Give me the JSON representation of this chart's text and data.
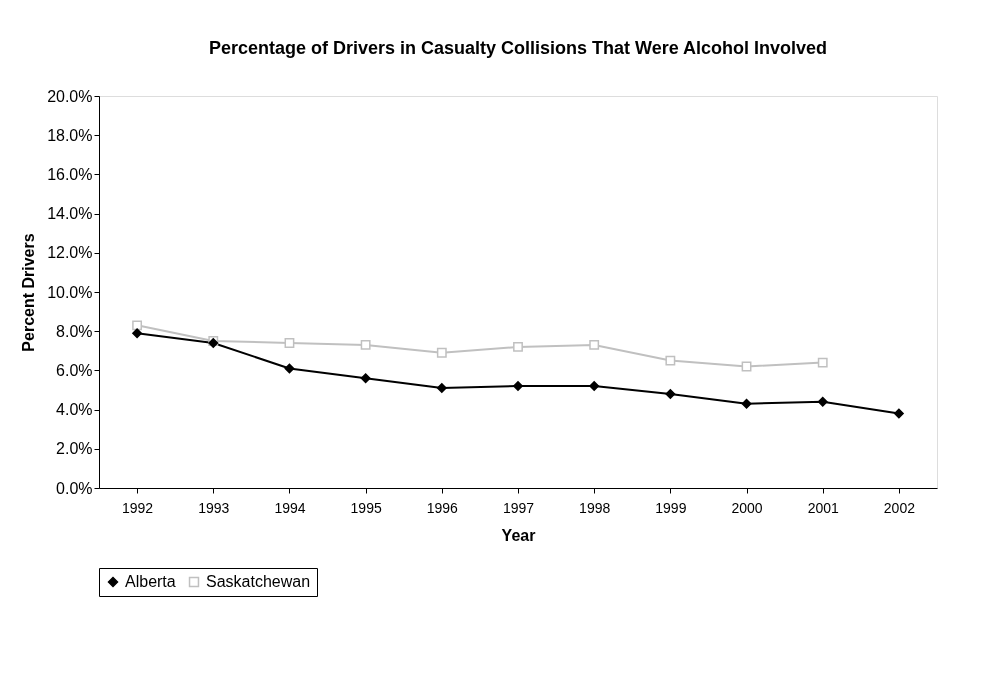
{
  "chart_data": {
    "type": "line",
    "title": "Percentage of Drivers in Casualty Collisions That Were Alcohol Involved",
    "xlabel": "Year",
    "ylabel": "Percent Drivers",
    "categories": [
      "1992",
      "1993",
      "1994",
      "1995",
      "1996",
      "1997",
      "1998",
      "1999",
      "2000",
      "2001",
      "2002"
    ],
    "series": [
      {
        "name": "Alberta",
        "color": "#000000",
        "marker": "diamond",
        "values": [
          7.9,
          7.4,
          6.1,
          5.6,
          5.1,
          5.2,
          5.2,
          4.8,
          4.3,
          4.4,
          3.8
        ]
      },
      {
        "name": "Saskatchewan",
        "color": "#c0c0c0",
        "marker": "square",
        "values": [
          8.3,
          7.5,
          7.4,
          7.3,
          6.9,
          7.2,
          7.3,
          6.5,
          6.2,
          6.4,
          null
        ]
      }
    ],
    "ylim": [
      0,
      20
    ],
    "yticks": [
      {
        "value": 0,
        "label": "0.0%"
      },
      {
        "value": 2,
        "label": "2.0%"
      },
      {
        "value": 4,
        "label": "4.0%"
      },
      {
        "value": 6,
        "label": "6.0%"
      },
      {
        "value": 8,
        "label": "8.0%"
      },
      {
        "value": 10,
        "label": "10.0%"
      },
      {
        "value": 12,
        "label": "12.0%"
      },
      {
        "value": 14,
        "label": "14.0%"
      },
      {
        "value": 16,
        "label": "16.0%"
      },
      {
        "value": 18,
        "label": "18.0%"
      },
      {
        "value": 20,
        "label": "20.0%"
      }
    ],
    "grid": false,
    "legend": "bottom",
    "line_style": "solid"
  }
}
